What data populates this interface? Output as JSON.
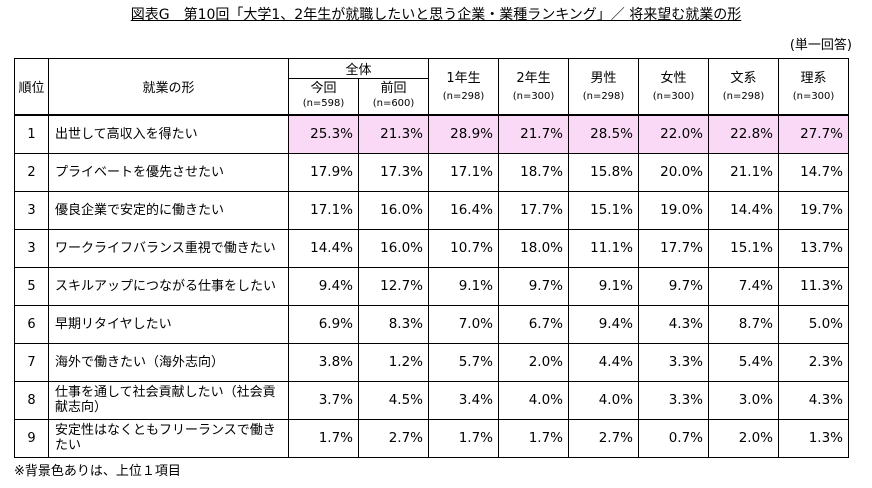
{
  "title": "図表G　第10回「大学1、2年生が就職したいと思う企業・業種ランキング」／ 将来望む就業の形",
  "unit": "(単一回答)",
  "note": "※背景色ありは、上位１項目",
  "header": {
    "rank": "順位",
    "form": "就業の形",
    "overall": "全体",
    "columns": [
      {
        "label": "今回",
        "n": "(n=598)"
      },
      {
        "label": "前回",
        "n": "(n=600)"
      },
      {
        "label": "1年生",
        "n": "(n=298)"
      },
      {
        "label": "2年生",
        "n": "(n=300)"
      },
      {
        "label": "男性",
        "n": "(n=298)"
      },
      {
        "label": "女性",
        "n": "(n=300)"
      },
      {
        "label": "文系",
        "n": "(n=298)"
      },
      {
        "label": "理系",
        "n": "(n=300)"
      }
    ]
  },
  "rows": [
    {
      "rank": "1",
      "label": "出世して高収入を得たい",
      "values": [
        "25.3%",
        "21.3%",
        "28.9%",
        "21.7%",
        "28.5%",
        "22.0%",
        "22.8%",
        "27.7%"
      ],
      "highlight": true
    },
    {
      "rank": "2",
      "label": "プライベートを優先させたい",
      "values": [
        "17.9%",
        "17.3%",
        "17.1%",
        "18.7%",
        "15.8%",
        "20.0%",
        "21.1%",
        "14.7%"
      ],
      "highlight": false
    },
    {
      "rank": "3",
      "label": "優良企業で安定的に働きたい",
      "values": [
        "17.1%",
        "16.0%",
        "16.4%",
        "17.7%",
        "15.1%",
        "19.0%",
        "14.4%",
        "19.7%"
      ],
      "highlight": false
    },
    {
      "rank": "3",
      "label": "ワークライフバランス重視で働きたい",
      "values": [
        "14.4%",
        "16.0%",
        "10.7%",
        "18.0%",
        "11.1%",
        "17.7%",
        "15.1%",
        "13.7%"
      ],
      "highlight": false
    },
    {
      "rank": "5",
      "label": "スキルアップにつながる仕事をしたい",
      "values": [
        "9.4%",
        "12.7%",
        "9.1%",
        "9.7%",
        "9.1%",
        "9.7%",
        "7.4%",
        "11.3%"
      ],
      "highlight": false
    },
    {
      "rank": "6",
      "label": "早期リタイヤしたい",
      "values": [
        "6.9%",
        "8.3%",
        "7.0%",
        "6.7%",
        "9.4%",
        "4.3%",
        "8.7%",
        "5.0%"
      ],
      "highlight": false
    },
    {
      "rank": "7",
      "label": "海外で働きたい（海外志向）",
      "values": [
        "3.8%",
        "1.2%",
        "5.7%",
        "2.0%",
        "4.4%",
        "3.3%",
        "5.4%",
        "2.3%"
      ],
      "highlight": false
    },
    {
      "rank": "8",
      "label": "仕事を通して社会貢献したい（社会貢献志向）",
      "values": [
        "3.7%",
        "4.5%",
        "3.4%",
        "4.0%",
        "4.0%",
        "3.3%",
        "3.0%",
        "4.3%"
      ],
      "highlight": false
    },
    {
      "rank": "9",
      "label": "安定性はなくともフリーランスで働きたい",
      "values": [
        "1.7%",
        "2.7%",
        "1.7%",
        "1.7%",
        "2.7%",
        "0.7%",
        "2.0%",
        "1.3%"
      ],
      "highlight": false
    }
  ]
}
